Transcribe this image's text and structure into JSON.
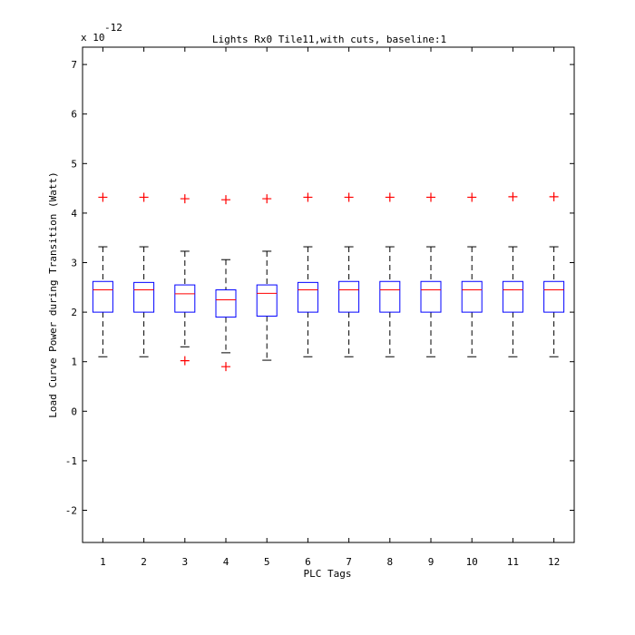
{
  "chart_data": {
    "type": "boxplot",
    "title": "Lights Rx0 Tile11,with cuts, baseline:1",
    "xlabel": "PLC Tags",
    "ylabel": "Load Curve Power during Transition (Watt)",
    "scale_label": {
      "base": "x 10",
      "exponent": "-12"
    },
    "ylim": [
      -2.65,
      7.35
    ],
    "yticks": [
      -2,
      -1,
      0,
      1,
      2,
      3,
      4,
      5,
      6,
      7
    ],
    "categories": [
      "1",
      "2",
      "3",
      "4",
      "5",
      "6",
      "7",
      "8",
      "9",
      "10",
      "11",
      "12"
    ],
    "boxes": [
      {
        "whisker_low": 1.1,
        "q1": 2.0,
        "median": 2.45,
        "q3": 2.62,
        "whisker_high": 3.32,
        "outliers": [
          4.32
        ]
      },
      {
        "whisker_low": 1.1,
        "q1": 2.0,
        "median": 2.45,
        "q3": 2.6,
        "whisker_high": 3.32,
        "outliers": [
          4.32
        ]
      },
      {
        "whisker_low": 1.3,
        "q1": 2.0,
        "median": 2.37,
        "q3": 2.55,
        "whisker_high": 3.23,
        "outliers": [
          1.02,
          4.29
        ]
      },
      {
        "whisker_low": 1.18,
        "q1": 1.9,
        "median": 2.25,
        "q3": 2.45,
        "whisker_high": 3.06,
        "outliers": [
          0.9,
          4.27
        ]
      },
      {
        "whisker_low": 1.03,
        "q1": 1.92,
        "median": 2.38,
        "q3": 2.55,
        "whisker_high": 3.23,
        "outliers": [
          4.29
        ]
      },
      {
        "whisker_low": 1.1,
        "q1": 2.0,
        "median": 2.45,
        "q3": 2.6,
        "whisker_high": 3.32,
        "outliers": [
          4.32
        ]
      },
      {
        "whisker_low": 1.1,
        "q1": 2.0,
        "median": 2.45,
        "q3": 2.62,
        "whisker_high": 3.32,
        "outliers": [
          4.32
        ]
      },
      {
        "whisker_low": 1.1,
        "q1": 2.0,
        "median": 2.45,
        "q3": 2.62,
        "whisker_high": 3.32,
        "outliers": [
          4.32
        ]
      },
      {
        "whisker_low": 1.1,
        "q1": 2.0,
        "median": 2.45,
        "q3": 2.62,
        "whisker_high": 3.32,
        "outliers": [
          4.32
        ]
      },
      {
        "whisker_low": 1.1,
        "q1": 2.0,
        "median": 2.45,
        "q3": 2.62,
        "whisker_high": 3.32,
        "outliers": [
          4.32
        ]
      },
      {
        "whisker_low": 1.1,
        "q1": 2.0,
        "median": 2.45,
        "q3": 2.62,
        "whisker_high": 3.32,
        "outliers": [
          4.33
        ]
      },
      {
        "whisker_low": 1.1,
        "q1": 2.0,
        "median": 2.45,
        "q3": 2.62,
        "whisker_high": 3.32,
        "outliers": [
          4.33
        ]
      }
    ],
    "grid": false,
    "colors": {
      "box": "#0000ff",
      "median": "#ff0000",
      "outlier": "#ff0000",
      "whisker": "#000000"
    }
  }
}
